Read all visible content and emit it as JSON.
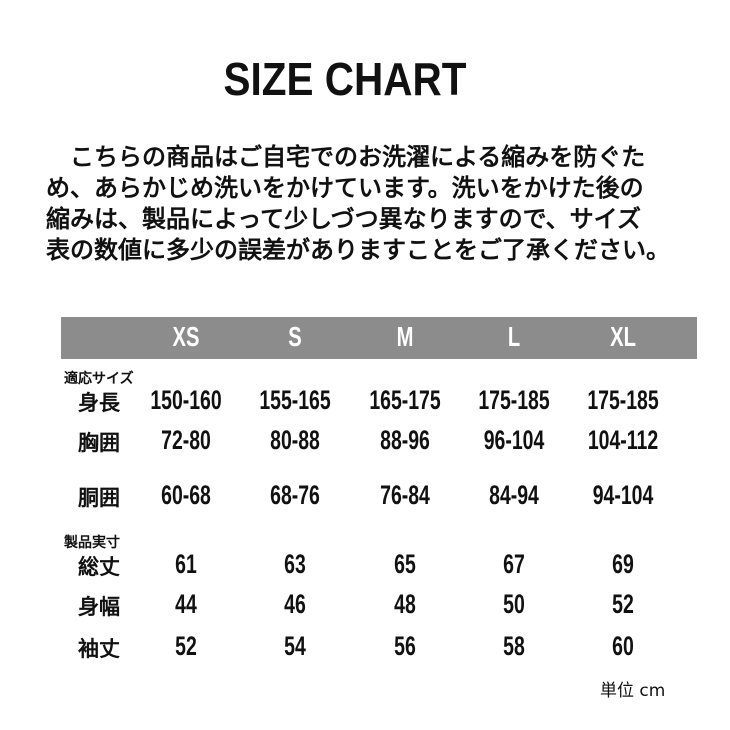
{
  "title": "SIZE CHART",
  "note_lines": [
    "　こちらの商品はご自宅でのお洗濯による縮みを防ぐた",
    "め、あらかじめ洗いをかけています。洗いをかけた後の",
    "縮みは、製品によって少しづつ異なりますので、サイズ",
    "表の数値に多少の誤差がありますことをご了承ください。"
  ],
  "header_color": "#8c8c8c",
  "sizes": [
    "XS",
    "S",
    "M",
    "L",
    "XL"
  ],
  "sections": [
    {
      "title": "適応サイズ",
      "rows": [
        {
          "label": "身長",
          "values": [
            "150-160",
            "155-165",
            "165-175",
            "175-185",
            "175-185"
          ]
        },
        {
          "label": "胸囲",
          "values": [
            "72-80",
            "80-88",
            "88-96",
            "96-104",
            "104-112"
          ]
        },
        {
          "label": "胴囲",
          "values": [
            "60-68",
            "68-76",
            "76-84",
            "84-94",
            "94-104"
          ]
        }
      ]
    },
    {
      "title": "製品実寸",
      "rows": [
        {
          "label": "総丈",
          "values": [
            "61",
            "63",
            "65",
            "67",
            "69"
          ]
        },
        {
          "label": "身幅",
          "values": [
            "44",
            "46",
            "48",
            "50",
            "52"
          ]
        },
        {
          "label": "袖丈",
          "values": [
            "52",
            "54",
            "56",
            "58",
            "60"
          ]
        }
      ]
    }
  ],
  "unit": "単位 cm"
}
